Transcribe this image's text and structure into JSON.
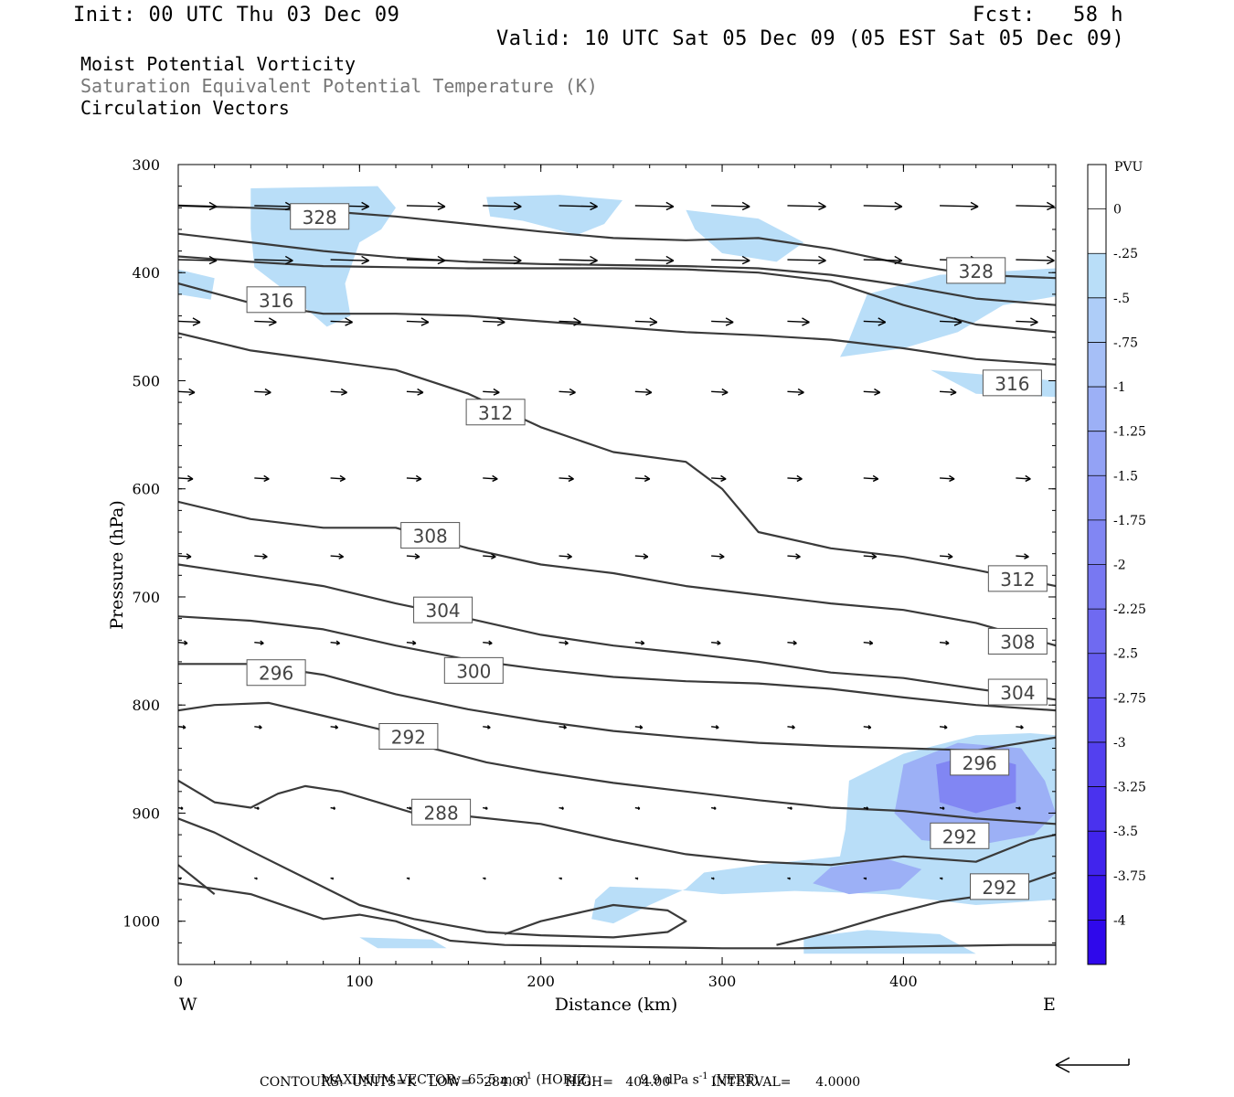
{
  "header": {
    "init": "Init: 00 UTC Thu 03 Dec 09",
    "fcst": "Fcst:   58 h",
    "valid": "Valid: 10 UTC Sat 05 Dec 09 (05 EST Sat 05 Dec 09)",
    "line1": "Moist Potential Vorticity",
    "line2": "Saturation Equivalent Potential Temperature (K)",
    "line3": "Circulation Vectors"
  },
  "footer": {
    "max_vector_label": "MAXIMUM VECTOR:",
    "max_horiz": "65.5 m s",
    "max_horiz_tag": "(HORIZ)",
    "max_vert": "9.9 dPa s",
    "max_vert_tag": "(VERT)",
    "sup": "-1",
    "contours": "CONTOURS:  UNITS=K   LOW=   284.00         HIGH=   404.00          INTERVAL=      4.0000"
  },
  "colors": {
    "contour": "#3a3a3a",
    "pv_scale": [
      "#ffffff",
      "#ffffff",
      "#b9def8",
      "#aecdf8",
      "#a6bff7",
      "#9cb0f6",
      "#93a2f5",
      "#8a94f4",
      "#8186f3",
      "#7878f2",
      "#6f6af1",
      "#655cf0",
      "#5c4ef0",
      "#5340ef",
      "#4a32ee",
      "#4124ed",
      "#3816ec",
      "#2f08eb"
    ]
  },
  "chart_data": {
    "type": "contour",
    "xlabel": "Distance (km)",
    "ylabel": "Pressure (hPa)",
    "x_ticks": [
      0,
      100,
      200,
      300,
      400
    ],
    "y_ticks": [
      300,
      400,
      500,
      600,
      700,
      800,
      900,
      1000
    ],
    "xlim": [
      0,
      484
    ],
    "ylim": [
      300,
      1040
    ],
    "x_end_labels": {
      "left": "W",
      "right": "E"
    },
    "colorbar": {
      "title": "PVU",
      "labels": [
        "0",
        "-.25",
        "-.5",
        "-.75",
        "-1",
        "-1.25",
        "-1.5",
        "-1.75",
        "-2",
        "-2.25",
        "-2.5",
        "-2.75",
        "-3",
        "-3.25",
        "-3.5",
        "-3.75",
        "-4"
      ]
    },
    "contour_labels": [
      {
        "value": "328",
        "x": 78,
        "p": 348
      },
      {
        "value": "328",
        "x": 440,
        "p": 398
      },
      {
        "value": "316",
        "x": 54,
        "p": 425
      },
      {
        "value": "316",
        "x": 460,
        "p": 502
      },
      {
        "value": "312",
        "x": 175,
        "p": 529
      },
      {
        "value": "312",
        "x": 463,
        "p": 683
      },
      {
        "value": "308",
        "x": 139,
        "p": 643
      },
      {
        "value": "308",
        "x": 463,
        "p": 741
      },
      {
        "value": "304",
        "x": 146,
        "p": 712
      },
      {
        "value": "304",
        "x": 463,
        "p": 788
      },
      {
        "value": "300",
        "x": 163,
        "p": 768
      },
      {
        "value": "296",
        "x": 54,
        "p": 770
      },
      {
        "value": "296",
        "x": 442,
        "p": 853
      },
      {
        "value": "292",
        "x": 127,
        "p": 829
      },
      {
        "value": "292",
        "x": 431,
        "p": 921
      },
      {
        "value": "292",
        "x": 453,
        "p": 968
      },
      {
        "value": "288",
        "x": 145,
        "p": 899
      }
    ],
    "theta_contours": [
      {
        "x": [
          0,
          40,
          80,
          120,
          160,
          200,
          240,
          280,
          320,
          360,
          400,
          440,
          484
        ],
        "p": [
          338,
          340,
          343,
          348,
          355,
          362,
          368,
          370,
          368,
          378,
          392,
          402,
          405
        ]
      },
      {
        "x": [
          0,
          40,
          80,
          120,
          160,
          200,
          240,
          280,
          320,
          360,
          400,
          440,
          484
        ],
        "p": [
          364,
          372,
          380,
          386,
          390,
          392,
          393,
          394,
          396,
          402,
          412,
          424,
          430
        ]
      },
      {
        "x": [
          0,
          40,
          80,
          120,
          160,
          200,
          240,
          280,
          320,
          360,
          400,
          440,
          484
        ],
        "p": [
          385,
          390,
          394,
          395,
          396,
          396,
          396,
          397,
          400,
          408,
          430,
          448,
          455
        ]
      },
      {
        "x": [
          0,
          40,
          80,
          120,
          160,
          200,
          240,
          280,
          320,
          360,
          400,
          440,
          484
        ],
        "p": [
          410,
          428,
          438,
          438,
          440,
          445,
          450,
          455,
          458,
          462,
          470,
          480,
          485
        ]
      },
      {
        "x": [
          0,
          40,
          80,
          120,
          160,
          200,
          240,
          280,
          300,
          320,
          360,
          400,
          440,
          484
        ],
        "p": [
          456,
          472,
          481,
          490,
          512,
          543,
          566,
          575,
          600,
          640,
          655,
          663,
          675,
          690
        ]
      },
      {
        "x": [
          0,
          40,
          80,
          120,
          160,
          200,
          240,
          280,
          320,
          360,
          400,
          440,
          484
        ],
        "p": [
          612,
          628,
          636,
          636,
          655,
          670,
          678,
          690,
          698,
          706,
          712,
          724,
          745
        ]
      },
      {
        "x": [
          0,
          40,
          80,
          120,
          160,
          200,
          240,
          280,
          320,
          360,
          400,
          440,
          484
        ],
        "p": [
          670,
          680,
          690,
          706,
          720,
          735,
          745,
          752,
          760,
          770,
          775,
          785,
          795
        ]
      },
      {
        "x": [
          0,
          40,
          80,
          120,
          160,
          200,
          240,
          280,
          320,
          360,
          400,
          440,
          484
        ],
        "p": [
          718,
          722,
          730,
          745,
          758,
          767,
          774,
          778,
          780,
          785,
          793,
          800,
          805
        ]
      },
      {
        "x": [
          0,
          40,
          80,
          120,
          160,
          200,
          240,
          280,
          320,
          360,
          400,
          440,
          484
        ],
        "p": [
          762,
          762,
          772,
          790,
          804,
          815,
          824,
          830,
          835,
          838,
          840,
          842,
          830
        ]
      },
      {
        "x": [
          0,
          20,
          50,
          80,
          110,
          140,
          170,
          200,
          240,
          280,
          320,
          360,
          400,
          440,
          484
        ],
        "p": [
          805,
          800,
          798,
          810,
          822,
          840,
          853,
          862,
          872,
          880,
          888,
          895,
          898,
          905,
          910
        ]
      },
      {
        "x": [
          0,
          20,
          40,
          55,
          70,
          90,
          110,
          130,
          160,
          200,
          240,
          280,
          320,
          360,
          400,
          440,
          470,
          484
        ],
        "p": [
          870,
          890,
          895,
          882,
          875,
          880,
          890,
          900,
          903,
          910,
          925,
          938,
          945,
          948,
          940,
          945,
          925,
          920
        ]
      },
      {
        "x": [
          0,
          20,
          40,
          70,
          100,
          130,
          170,
          200,
          240,
          270,
          280,
          270,
          240,
          200,
          180
        ],
        "p": [
          905,
          918,
          935,
          960,
          985,
          998,
          1010,
          1013,
          1015,
          1010,
          1000,
          990,
          985,
          1000,
          1012
        ]
      },
      {
        "x": [
          0,
          20
        ],
        "p": [
          948,
          975
        ]
      },
      {
        "x": [
          0,
          40,
          80,
          100,
          120,
          150,
          180,
          220,
          260,
          300,
          340,
          380,
          420,
          460,
          484
        ],
        "p": [
          965,
          975,
          998,
          994,
          1000,
          1018,
          1022,
          1023,
          1024,
          1025,
          1025,
          1024,
          1023,
          1022,
          1022
        ]
      },
      {
        "x": [
          330,
          360,
          390,
          420,
          450,
          484
        ],
        "p": [
          1022,
          1010,
          995,
          982,
          975,
          955
        ]
      }
    ],
    "pv_shading": {
      "light": [
        [
          [
            40,
            322
          ],
          [
            110,
            320
          ],
          [
            120,
            340
          ],
          [
            112,
            360
          ],
          [
            100,
            372
          ],
          [
            92,
            410
          ],
          [
            95,
            440
          ],
          [
            82,
            450
          ],
          [
            60,
            418
          ],
          [
            42,
            395
          ],
          [
            40,
            360
          ]
        ],
        [
          [
            170,
            330
          ],
          [
            210,
            328
          ],
          [
            245,
            333
          ],
          [
            235,
            355
          ],
          [
            220,
            365
          ],
          [
            190,
            352
          ],
          [
            172,
            348
          ]
        ],
        [
          [
            280,
            342
          ],
          [
            320,
            350
          ],
          [
            345,
            372
          ],
          [
            330,
            390
          ],
          [
            300,
            382
          ],
          [
            285,
            360
          ]
        ],
        [
          [
            0,
            397
          ],
          [
            20,
            405
          ],
          [
            18,
            425
          ],
          [
            0,
            420
          ]
        ],
        [
          [
            380,
            420
          ],
          [
            420,
            402
          ],
          [
            484,
            396
          ],
          [
            484,
            422
          ],
          [
            455,
            430
          ],
          [
            430,
            455
          ],
          [
            400,
            470
          ],
          [
            365,
            478
          ],
          [
            370,
            462
          ]
        ],
        [
          [
            415,
            490
          ],
          [
            484,
            500
          ],
          [
            484,
            515
          ],
          [
            440,
            512
          ]
        ],
        [
          [
            370,
            870
          ],
          [
            400,
            845
          ],
          [
            440,
            828
          ],
          [
            470,
            826
          ],
          [
            484,
            828
          ],
          [
            484,
            980
          ],
          [
            440,
            985
          ],
          [
            390,
            975
          ],
          [
            340,
            972
          ],
          [
            300,
            975
          ],
          [
            270,
            970
          ],
          [
            238,
            968
          ],
          [
            230,
            980
          ],
          [
            228,
            998
          ],
          [
            240,
            1002
          ],
          [
            260,
            985
          ],
          [
            280,
            970
          ],
          [
            290,
            955
          ],
          [
            320,
            948
          ],
          [
            365,
            940
          ],
          [
            368,
            915
          ]
        ],
        [
          [
            345,
            1015
          ],
          [
            380,
            1008
          ],
          [
            420,
            1012
          ],
          [
            440,
            1030
          ],
          [
            380,
            1030
          ],
          [
            345,
            1030
          ]
        ],
        [
          [
            100,
            1015
          ],
          [
            140,
            1017
          ],
          [
            148,
            1025
          ],
          [
            110,
            1025
          ]
        ]
      ],
      "mid": [
        [
          [
            400,
            855
          ],
          [
            430,
            835
          ],
          [
            465,
            840
          ],
          [
            478,
            870
          ],
          [
            484,
            900
          ],
          [
            472,
            920
          ],
          [
            440,
            930
          ],
          [
            410,
            925
          ],
          [
            395,
            900
          ]
        ],
        [
          [
            360,
            950
          ],
          [
            390,
            942
          ],
          [
            410,
            952
          ],
          [
            398,
            970
          ],
          [
            370,
            975
          ],
          [
            350,
            965
          ]
        ]
      ],
      "dark": [
        [
          [
            418,
            855
          ],
          [
            440,
            845
          ],
          [
            462,
            855
          ],
          [
            462,
            890
          ],
          [
            440,
            900
          ],
          [
            420,
            890
          ]
        ]
      ]
    },
    "vector_rows": [
      {
        "p": 338,
        "len": 42
      },
      {
        "p": 388,
        "len": 42
      },
      {
        "p": 445,
        "len": 24
      },
      {
        "p": 510,
        "len": 18
      },
      {
        "p": 590,
        "len": 16
      },
      {
        "p": 662,
        "len": 14
      },
      {
        "p": 742,
        "len": 10
      },
      {
        "p": 820,
        "len": 8
      },
      {
        "p": 895,
        "len": 5
      },
      {
        "p": 960,
        "len": 3
      }
    ]
  }
}
